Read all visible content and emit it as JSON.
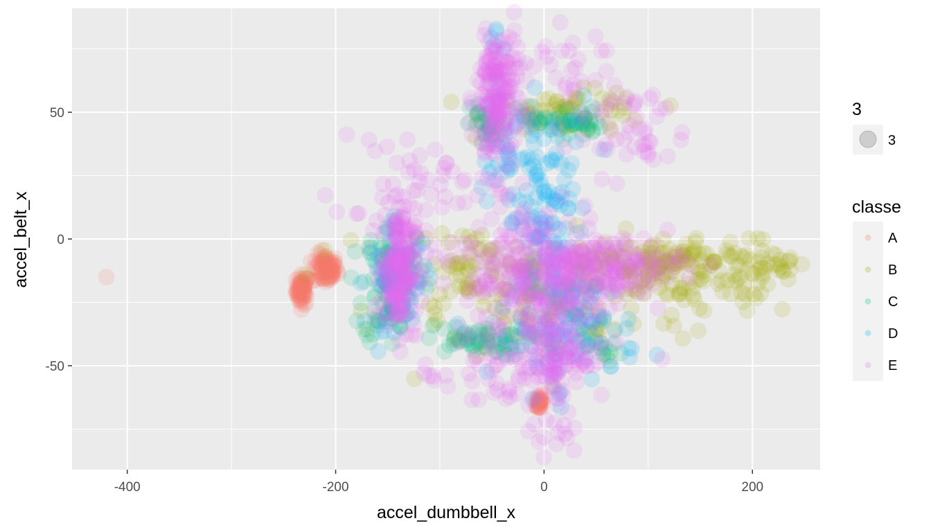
{
  "chart_data": {
    "type": "scatter",
    "title": "",
    "xlabel": "accel_dumbbell_x",
    "ylabel": "accel_belt_x",
    "xlim": [
      -453,
      265
    ],
    "ylim": [
      -91,
      91
    ],
    "x_ticks": [
      -400,
      -200,
      0,
      200
    ],
    "y_ticks": [
      -50,
      0,
      50
    ],
    "grid": true,
    "legend_position": "right",
    "point_alpha": 0.15,
    "size_legend": {
      "title": "3",
      "label": "3"
    },
    "color_legend": {
      "title": "classe"
    },
    "series": [
      {
        "name": "A",
        "color": "#F8766D",
        "clusters": [
          {
            "x": -232,
            "y": -20,
            "spread_x": 3,
            "spread_y": 3,
            "n": 60
          },
          {
            "x": -210,
            "y": -12,
            "spread_x": 6,
            "spread_y": 3,
            "n": 80
          },
          {
            "x": -4,
            "y": -64,
            "spread_x": 2,
            "spread_y": 2,
            "n": 30
          },
          {
            "x": -420,
            "y": -15,
            "spread_x": 0,
            "spread_y": 0,
            "n": 1
          }
        ]
      },
      {
        "name": "B",
        "color": "#A3A500",
        "clusters": [
          {
            "x": 120,
            "y": -9,
            "spread_x": 95,
            "spread_y": 4,
            "n": 200
          },
          {
            "x": 140,
            "y": -20,
            "spread_x": 60,
            "spread_y": 5,
            "n": 60
          },
          {
            "x": 25,
            "y": 50,
            "spread_x": 40,
            "spread_y": 4,
            "n": 70
          },
          {
            "x": -90,
            "y": -15,
            "spread_x": 60,
            "spread_y": 10,
            "n": 90
          },
          {
            "x": 20,
            "y": -30,
            "spread_x": 60,
            "spread_y": 10,
            "n": 70
          }
        ]
      },
      {
        "name": "C",
        "color": "#00BF7D",
        "clusters": [
          {
            "x": -150,
            "y": -18,
            "spread_x": 12,
            "spread_y": 12,
            "n": 80
          },
          {
            "x": -65,
            "y": -40,
            "spread_x": 25,
            "spread_y": 3,
            "n": 60
          },
          {
            "x": 25,
            "y": 46,
            "spread_x": 15,
            "spread_y": 3,
            "n": 40
          },
          {
            "x": -55,
            "y": 45,
            "spread_x": 8,
            "spread_y": 5,
            "n": 30
          },
          {
            "x": 60,
            "y": -45,
            "spread_x": 8,
            "spread_y": 2,
            "n": 10
          }
        ]
      },
      {
        "name": "D",
        "color": "#00B0F6",
        "clusters": [
          {
            "x": 5,
            "y": 5,
            "spread_x": 20,
            "spread_y": 25,
            "n": 120
          },
          {
            "x": 30,
            "y": -35,
            "spread_x": 30,
            "spread_y": 10,
            "n": 90
          },
          {
            "x": -140,
            "y": -15,
            "spread_x": 15,
            "spread_y": 10,
            "n": 70
          },
          {
            "x": -30,
            "y": 35,
            "spread_x": 15,
            "spread_y": 12,
            "n": 40
          },
          {
            "x": -45,
            "y": 80,
            "spread_x": 4,
            "spread_y": 3,
            "n": 5
          }
        ]
      },
      {
        "name": "E",
        "color": "#E76BF3",
        "clusters": [
          {
            "x": -45,
            "y": 55,
            "spread_x": 10,
            "spread_y": 15,
            "n": 200
          },
          {
            "x": -140,
            "y": -12,
            "spread_x": 8,
            "spread_y": 12,
            "n": 200
          },
          {
            "x": 0,
            "y": -15,
            "spread_x": 40,
            "spread_y": 15,
            "n": 300
          },
          {
            "x": 55,
            "y": -10,
            "spread_x": 40,
            "spread_y": 5,
            "n": 150
          },
          {
            "x": 10,
            "y": -45,
            "spread_x": 15,
            "spread_y": 8,
            "n": 100
          },
          {
            "x": -130,
            "y": 15,
            "spread_x": 40,
            "spread_y": 20,
            "n": 60
          },
          {
            "x": 80,
            "y": 45,
            "spread_x": 30,
            "spread_y": 10,
            "n": 50
          },
          {
            "x": 0,
            "y": 70,
            "spread_x": 35,
            "spread_y": 8,
            "n": 30
          },
          {
            "x": -40,
            "y": -55,
            "spread_x": 40,
            "spread_y": 8,
            "n": 50
          },
          {
            "x": 5,
            "y": -75,
            "spread_x": 10,
            "spread_y": 5,
            "n": 15
          }
        ]
      }
    ]
  }
}
